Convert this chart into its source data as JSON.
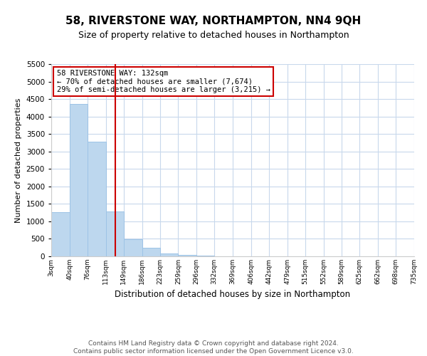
{
  "title": "58, RIVERSTONE WAY, NORTHAMPTON, NN4 9QH",
  "subtitle": "Size of property relative to detached houses in Northampton",
  "xlabel": "Distribution of detached houses by size in Northampton",
  "ylabel": "Number of detached properties",
  "footer_line1": "Contains HM Land Registry data © Crown copyright and database right 2024.",
  "footer_line2": "Contains public sector information licensed under the Open Government Licence v3.0.",
  "annotation_line1": "58 RIVERSTONE WAY: 132sqm",
  "annotation_line2": "← 70% of detached houses are smaller (7,674)",
  "annotation_line3": "29% of semi-detached houses are larger (3,215) →",
  "bin_edges": [
    3,
    40,
    76,
    113,
    149,
    186,
    223,
    259,
    296,
    332,
    369,
    406,
    442,
    479,
    515,
    552,
    589,
    625,
    662,
    698,
    735
  ],
  "bar_heights": [
    1270,
    4350,
    3280,
    1280,
    480,
    240,
    80,
    50,
    20,
    5,
    2,
    0,
    0,
    0,
    0,
    0,
    0,
    0,
    0,
    0
  ],
  "bar_color": "#bdd7ee",
  "bar_edge_color": "#9dc3e6",
  "vline_x": 132,
  "vline_color": "#cc0000",
  "ylim": [
    0,
    5500
  ],
  "yticks": [
    0,
    500,
    1000,
    1500,
    2000,
    2500,
    3000,
    3500,
    4000,
    4500,
    5000,
    5500
  ],
  "background_color": "#ffffff",
  "grid_color": "#c8d8ec",
  "title_fontsize": 11,
  "subtitle_fontsize": 9,
  "annotation_box_color": "#ffffff",
  "annotation_box_edge": "#cc0000",
  "footer_fontsize": 6.5,
  "footer_color": "#555555"
}
